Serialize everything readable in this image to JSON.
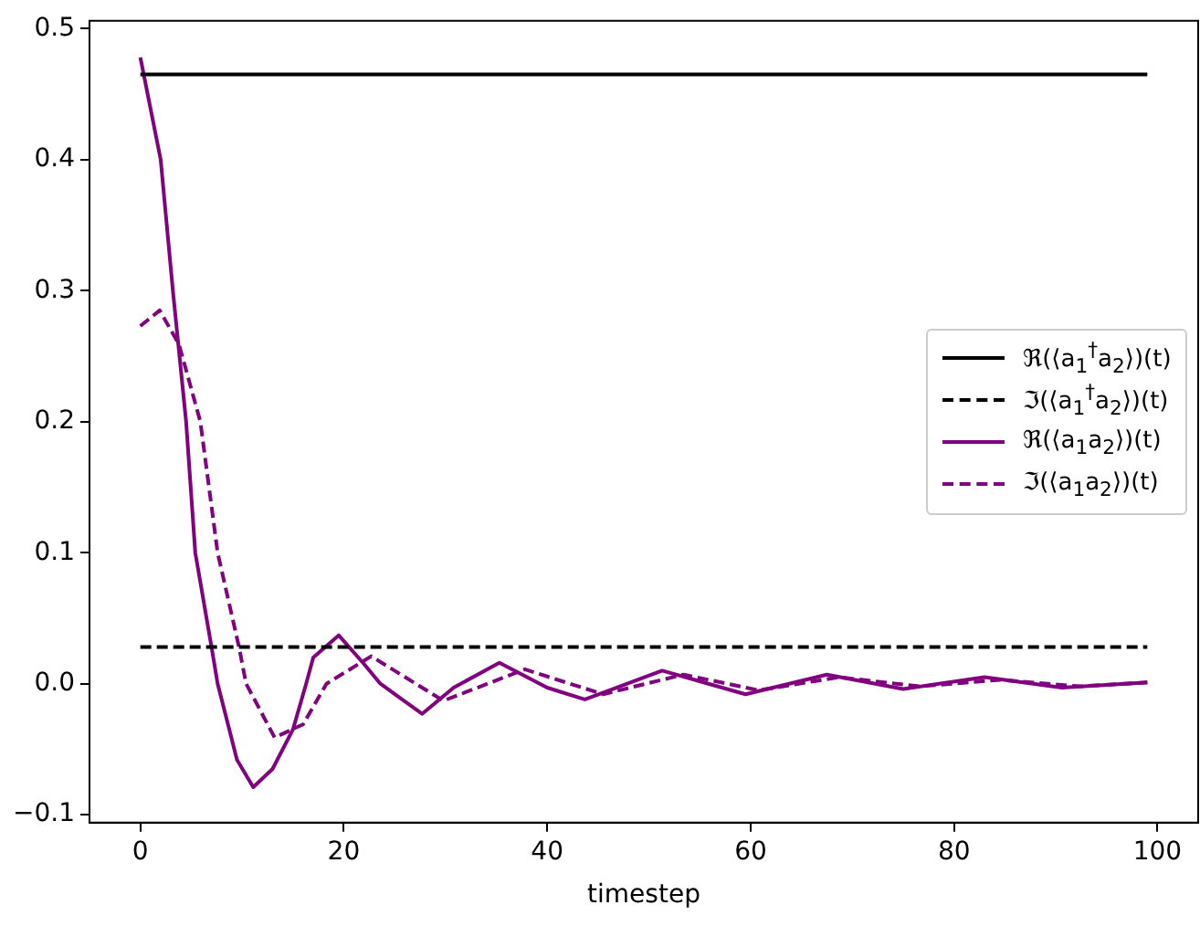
{
  "chart_data": {
    "type": "line",
    "xlabel": "timestep",
    "xlim": [
      -5,
      104
    ],
    "xticks": [
      0,
      20,
      40,
      60,
      80,
      100
    ],
    "ylim": [
      -0.106,
      0.506
    ],
    "yticks": [
      {
        "value": -0.1,
        "label": "−0.1"
      },
      {
        "value": 0,
        "label": "0.0"
      },
      0.1,
      0.2,
      0.3,
      0.4,
      0.5
    ],
    "grid": false,
    "legend": "right",
    "marker": "none",
    "series": [
      {
        "name": "ℜ(⟨a$_{1}$$^{†}$a$_{2}$⟩)(t)",
        "color": "#000000",
        "line_style": "solid",
        "x": [
          0,
          99
        ],
        "values": [
          0.465,
          0.465
        ]
      },
      {
        "name": "ℑ(⟨a$_{1}$$^{†}$a$_{2}$⟩)(t)",
        "color": "#000000",
        "line_style": "dashed",
        "x": [
          0,
          99
        ],
        "values": [
          0.028,
          0.028
        ]
      },
      {
        "name": "ℜ(⟨a$_{1}$a$_{2}$⟩)(t)",
        "color": "#800080",
        "line_style": "solid",
        "x": [
          0,
          1,
          2,
          3.2,
          4.5,
          5.4,
          7,
          7.6,
          9.5,
          11.1,
          13,
          15,
          16.3,
          17,
          19.5,
          22,
          23.6,
          27.7,
          30.8,
          35.3,
          40,
          43.7,
          51.3,
          59.5,
          67.5,
          75,
          83,
          90.6,
          99
        ],
        "values": [
          0.478,
          0.439,
          0.4,
          0.3,
          0.2,
          0.1,
          0.028,
          0,
          -0.058,
          -0.079,
          -0.065,
          -0.035,
          0,
          0.02,
          0.037,
          0.015,
          0,
          -0.023,
          -0.003,
          0.016,
          -0.003,
          -0.012,
          0.01,
          -0.008,
          0.007,
          -0.004,
          0.005,
          -0.003,
          0.001
        ]
      },
      {
        "name": "ℑ(⟨a$_{1}$a$_{2}$⟩)(t)",
        "color": "#800080",
        "line_style": "dashed",
        "x": [
          0,
          1.9,
          3.8,
          5.9,
          7.6,
          9.7,
          10.4,
          13.2,
          16,
          18.3,
          22.7,
          29.8,
          37.8,
          45.5,
          53.4,
          60.8,
          68.7,
          76.6,
          84.5,
          92.4,
          99
        ],
        "values": [
          0.273,
          0.285,
          0.259,
          0.2,
          0.1,
          0.028,
          0,
          -0.041,
          -0.031,
          0,
          0.021,
          -0.013,
          0.011,
          -0.008,
          0.007,
          -0.005,
          0.005,
          -0.002,
          0.003,
          -0.002,
          0.001
        ]
      }
    ]
  }
}
